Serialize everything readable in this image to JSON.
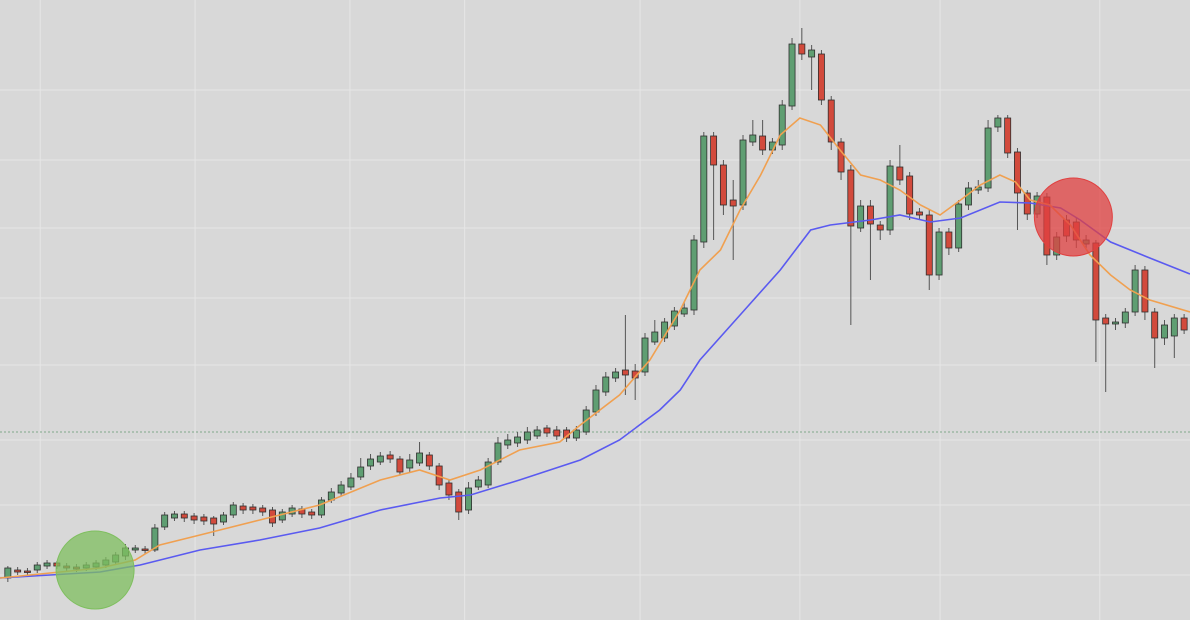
{
  "chart_data": {
    "type": "candlestick",
    "xlim": [
      -0.8,
      120.6
    ],
    "ylim": [
      0,
      620
    ],
    "xgrid": [
      3.3,
      19.1,
      34.9,
      46.6,
      64.5,
      80.8,
      95.1,
      111.4
    ],
    "ygrid": [
      45,
      115,
      180,
      255,
      322,
      392,
      460,
      530
    ],
    "up_color": "#5f9e72",
    "down_color": "#d24a3c",
    "open": [
      42,
      50,
      49,
      50,
      54,
      57,
      54,
      53,
      52,
      53,
      55,
      58,
      64,
      70,
      71,
      70,
      93,
      102,
      106,
      104,
      103,
      102,
      98,
      105,
      114,
      113,
      112,
      110,
      100,
      106,
      111,
      108,
      105,
      120,
      127,
      133,
      143,
      154,
      158,
      165,
      161,
      152,
      157,
      165,
      154,
      137,
      128,
      110,
      133,
      135,
      158,
      175,
      177,
      180,
      184,
      192,
      190,
      190,
      182,
      188,
      208,
      228,
      242,
      250,
      249,
      248,
      278,
      282,
      294,
      306,
      310,
      378,
      484,
      455,
      420,
      415,
      478,
      484,
      470,
      475,
      514,
      576,
      563,
      566,
      520,
      478,
      450,
      392,
      414,
      395,
      390,
      453,
      444,
      408,
      405,
      345,
      388,
      372,
      415,
      430,
      432,
      493,
      502,
      468,
      427,
      406,
      423,
      365,
      400,
      398,
      376,
      377,
      302,
      296,
      297,
      308,
      350,
      308,
      282,
      284,
      302
    ],
    "high": [
      54,
      53,
      52,
      58,
      60,
      59,
      57,
      56,
      58,
      60,
      63,
      68,
      76,
      75,
      74,
      96,
      108,
      109,
      109,
      107,
      106,
      104,
      108,
      118,
      117,
      116,
      115,
      113,
      111,
      115,
      114,
      111,
      123,
      132,
      139,
      147,
      162,
      166,
      168,
      169,
      164,
      166,
      178,
      168,
      157,
      140,
      131,
      138,
      144,
      162,
      183,
      186,
      188,
      193,
      194,
      195,
      194,
      193,
      194,
      214,
      235,
      248,
      252,
      305,
      256,
      287,
      300,
      302,
      313,
      318,
      385,
      488,
      488,
      460,
      440,
      485,
      500,
      500,
      482,
      520,
      582,
      592,
      575,
      570,
      524,
      482,
      455,
      420,
      420,
      399,
      460,
      475,
      448,
      412,
      410,
      392,
      392,
      420,
      438,
      440,
      500,
      505,
      505,
      472,
      430,
      428,
      427,
      388,
      405,
      402,
      385,
      380,
      306,
      302,
      312,
      355,
      354,
      312,
      300,
      306,
      306
    ],
    "low": [
      38,
      45,
      45,
      47,
      51,
      51,
      49,
      48,
      49,
      50,
      52,
      55,
      60,
      67,
      66,
      68,
      90,
      99,
      98,
      96,
      95,
      84,
      95,
      102,
      106,
      106,
      104,
      93,
      97,
      103,
      102,
      101,
      102,
      117,
      124,
      130,
      140,
      150,
      155,
      157,
      145,
      148,
      154,
      150,
      130,
      120,
      100,
      106,
      130,
      132,
      155,
      171,
      173,
      176,
      181,
      183,
      180,
      178,
      179,
      185,
      204,
      224,
      238,
      225,
      220,
      244,
      275,
      278,
      290,
      303,
      305,
      372,
      380,
      405,
      360,
      410,
      474,
      465,
      466,
      470,
      510,
      560,
      530,
      515,
      470,
      440,
      295,
      388,
      340,
      380,
      385,
      435,
      400,
      400,
      330,
      340,
      365,
      368,
      410,
      426,
      428,
      488,
      462,
      390,
      400,
      402,
      355,
      360,
      378,
      372,
      372,
      258,
      228,
      290,
      292,
      304,
      300,
      252,
      275,
      262,
      286
    ],
    "close": [
      52,
      48,
      48,
      55,
      57,
      54,
      52,
      51,
      55,
      57,
      60,
      65,
      72,
      72,
      70,
      92,
      105,
      106,
      102,
      100,
      99,
      96,
      105,
      115,
      110,
      110,
      108,
      97,
      108,
      112,
      106,
      105,
      120,
      128,
      135,
      142,
      153,
      161,
      164,
      161,
      148,
      160,
      167,
      154,
      135,
      125,
      108,
      132,
      140,
      158,
      177,
      180,
      183,
      188,
      190,
      187,
      184,
      182,
      190,
      210,
      230,
      243,
      248,
      245,
      242,
      282,
      288,
      298,
      309,
      312,
      380,
      484,
      455,
      415,
      414,
      480,
      485,
      470,
      478,
      515,
      576,
      566,
      570,
      520,
      478,
      448,
      394,
      414,
      396,
      390,
      454,
      440,
      406,
      405,
      345,
      388,
      372,
      416,
      432,
      433,
      492,
      502,
      467,
      427,
      406,
      424,
      365,
      383,
      384,
      380,
      380,
      300,
      296,
      298,
      308,
      350,
      308,
      282,
      295,
      302,
      290
    ],
    "lines": [
      {
        "color": "#f0a050",
        "x": [
          -0.8,
          9.4,
          13,
          15.5,
          19.6,
          25.7,
          31.8,
          38,
          42,
          45.1,
          48.2,
          52.2,
          56.3,
          58.4,
          62.4,
          65.5,
          68.6,
          70.6,
          72.7,
          74.7,
          76.8,
          78.8,
          80.8,
          82.9,
          84.9,
          87,
          89,
          91,
          93.1,
          95.1,
          97.2,
          99.2,
          101.2,
          102.8,
          104.3,
          106.3,
          108.4,
          110.4,
          112.5,
          114.5,
          116.5,
          120.6
        ],
        "values": [
          42,
          52,
          60,
          75,
          85,
          100,
          115,
          140,
          150,
          140,
          150,
          170,
          178,
          195,
          225,
          260,
          310,
          350,
          370,
          410,
          445,
          485,
          502,
          495,
          470,
          445,
          440,
          430,
          415,
          405,
          420,
          435,
          445,
          438,
          420,
          415,
          395,
          365,
          345,
          330,
          320,
          308
        ]
      },
      {
        "color": "#5a5af0",
        "x": [
          -0.8,
          9.4,
          13.5,
          19.6,
          25.7,
          31.8,
          38,
          44.1,
          47.2,
          52.2,
          58.4,
          62.4,
          66.5,
          68.6,
          70.6,
          74.7,
          78.8,
          81.9,
          83.9,
          88,
          91,
          94.1,
          97.2,
          101.2,
          104.3,
          107.4,
          109.4,
          112.5,
          116.5,
          120.6
        ],
        "values": [
          42,
          48,
          55,
          70,
          80,
          92,
          110,
          122,
          125,
          140,
          160,
          180,
          210,
          230,
          260,
          305,
          350,
          390,
          395,
          400,
          405,
          398,
          402,
          418,
          417,
          412,
          400,
          378,
          362,
          346
        ]
      }
    ],
    "reference_line": {
      "value": 188,
      "color": "#7fa88a"
    },
    "highlights": [
      {
        "x": 8.9,
        "value": 50,
        "color": "#7fbf5f"
      },
      {
        "x": 108.7,
        "value": 403,
        "color": "#e04040"
      }
    ]
  }
}
